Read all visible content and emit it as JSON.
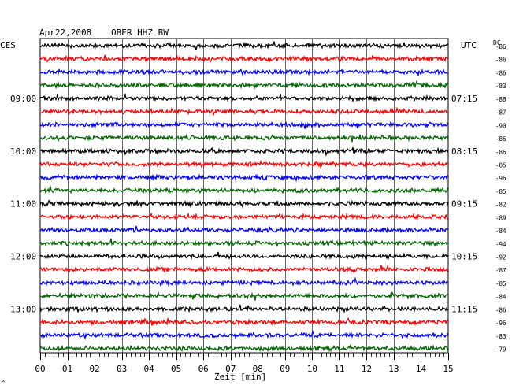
{
  "header": {
    "date": "Apr22,2008",
    "station": "OBER HHZ BW",
    "left_zone": "CES",
    "right_zone": "UTC",
    "dc_label": "DC"
  },
  "chart_data": {
    "type": "line",
    "title": "Apr22,2008  OBER HHZ BW",
    "xlabel": "Zeit [min]",
    "xlim": [
      0,
      15
    ],
    "x_ticks": [
      "00",
      "01",
      "02",
      "03",
      "04",
      "05",
      "06",
      "07",
      "08",
      "09",
      "10",
      "11",
      "12",
      "13",
      "14",
      "15"
    ],
    "grid": true,
    "rows_per_hour": 4,
    "trace_colors": [
      "#000000",
      "#ff0000",
      "#0000ff",
      "#006400"
    ],
    "left_time_labels": [
      "09:00",
      "10:00",
      "11:00",
      "12:00",
      "13:00"
    ],
    "right_time_labels": [
      "07:15",
      "08:15",
      "09:15",
      "10:15",
      "11:15"
    ],
    "dc_offsets": [
      "-86",
      "-86",
      "-86",
      "-83",
      "-88",
      "-87",
      "-90",
      "-86",
      "-86",
      "-85",
      "-96",
      "-85",
      "-82",
      "-89",
      "-84",
      "-94",
      "-92",
      "-87",
      "-85",
      "-84",
      "-86",
      "-96",
      "-83",
      "-79"
    ],
    "series": [
      {
        "label_row": "-86"
      },
      {
        "label_row": "-86"
      },
      {
        "label_row": "-86"
      },
      {
        "label_row": "-83"
      },
      {
        "label_row": "-88"
      },
      {
        "label_row": "-87"
      },
      {
        "label_row": "-90"
      },
      {
        "label_row": "-86"
      },
      {
        "label_row": "-86"
      },
      {
        "label_row": "-85"
      },
      {
        "label_row": "-96"
      },
      {
        "label_row": "-85"
      },
      {
        "label_row": "-82"
      },
      {
        "label_row": "-89"
      },
      {
        "label_row": "-84"
      },
      {
        "label_row": "-94"
      },
      {
        "label_row": "-92"
      },
      {
        "label_row": "-87"
      },
      {
        "label_row": "-85"
      },
      {
        "label_row": "-84"
      },
      {
        "label_row": "-86"
      },
      {
        "label_row": "-96"
      },
      {
        "label_row": "-83"
      },
      {
        "label_row": "-79"
      }
    ],
    "footer_mark": "^"
  }
}
